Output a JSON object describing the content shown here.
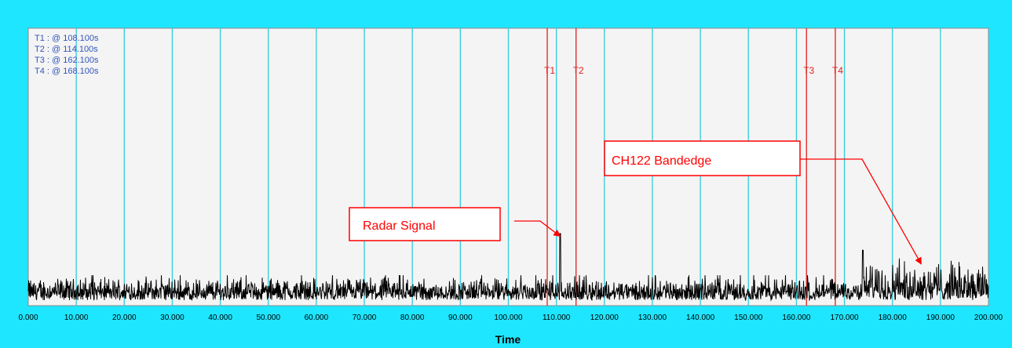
{
  "chart_data": {
    "type": "line",
    "xlabel": "Time",
    "ylabel": "",
    "xlim": [
      0,
      200
    ],
    "ylim": [
      0,
      1
    ],
    "grid": true,
    "x_ticks": [
      "0.000",
      "10.000",
      "20.000",
      "30.000",
      "40.000",
      "50.000",
      "60.000",
      "70.000",
      "80.000",
      "90.000",
      "100.000",
      "110.000",
      "120.000",
      "130.000",
      "140.000",
      "150.000",
      "160.000",
      "170.000",
      "180.000",
      "190.000",
      "200.000"
    ],
    "markers": [
      {
        "label": "T1",
        "x": 108.1
      },
      {
        "label": "T2",
        "x": 114.1
      },
      {
        "label": "T3",
        "x": 162.1
      },
      {
        "label": "T4",
        "x": 168.1
      }
    ],
    "marker_readout": [
      "T1 : @ 108.100s",
      "T2 : @ 114.100s",
      "T3 : @ 162.100s",
      "T4 : @ 168.100s"
    ],
    "series": [
      {
        "trace": {
          "noise_floor": 0.06,
          "noise_band": [
            0.02,
            0.11
          ],
          "events": [
            {
              "x": 110.8,
              "peak": 0.26
            },
            {
              "x": 173.8,
              "peak": 0.2
            }
          ],
          "elevated_segment": {
            "x_start": 174.0,
            "x_end": 200.0,
            "band": [
              0.02,
              0.17
            ]
          }
        }
      }
    ],
    "annotations": [
      {
        "text": "Radar Signal",
        "target_x": 110.8,
        "target_y": 0.25
      },
      {
        "text": "CH122 Bandedge",
        "target_x": 186.0,
        "target_y": 0.15
      }
    ],
    "colors": {
      "frame": "#1ee6ff",
      "plot_bg": "#f4f4f4",
      "grid": "#33ccdd",
      "marker": "#e02020",
      "trace": "#000000",
      "readout": "#3355bb",
      "annotation": "#ff0000"
    }
  }
}
